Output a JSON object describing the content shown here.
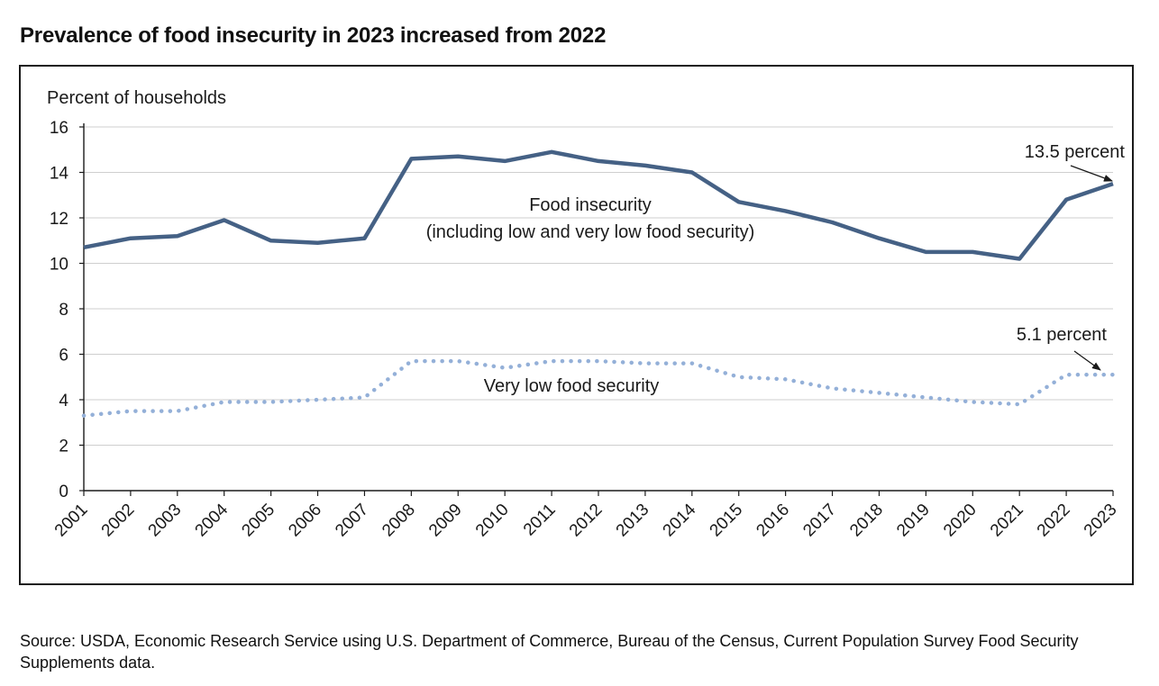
{
  "title": "Prevalence of food insecurity in 2023 increased from 2022",
  "source": "Source: USDA, Economic Research Service using U.S. Department of Commerce, Bureau of the Census, Current Population Survey Food Security Supplements data.",
  "annotations": {
    "food_insecurity_line1": "Food insecurity",
    "food_insecurity_line2": "(including low and very low food security)",
    "very_low": "Very low food security",
    "fi_end": "13.5 percent",
    "vl_end": "5.1 percent"
  },
  "chart_data": {
    "type": "line",
    "ylabel": "Percent of households",
    "xlabel": "",
    "ylim": [
      0,
      16
    ],
    "yticks": [
      0,
      2,
      4,
      6,
      8,
      10,
      12,
      14,
      16
    ],
    "grid": true,
    "categories": [
      "2001",
      "2002",
      "2003",
      "2004",
      "2005",
      "2006",
      "2007",
      "2008",
      "2009",
      "2010",
      "2011",
      "2012",
      "2013",
      "2014",
      "2015",
      "2016",
      "2017",
      "2018",
      "2019",
      "2020",
      "2021",
      "2022",
      "2023"
    ],
    "series": [
      {
        "style": "solid",
        "color": "#456185",
        "values": [
          10.7,
          11.1,
          11.2,
          11.9,
          11.0,
          10.9,
          11.1,
          14.6,
          14.7,
          14.5,
          14.9,
          14.5,
          14.3,
          14.0,
          12.7,
          12.3,
          11.8,
          11.1,
          10.5,
          10.5,
          10.2,
          12.8,
          13.5
        ]
      },
      {
        "style": "dotted",
        "color": "#94b0d8",
        "values": [
          3.3,
          3.5,
          3.5,
          3.9,
          3.9,
          4.0,
          4.1,
          5.7,
          5.7,
          5.4,
          5.7,
          5.7,
          5.6,
          5.6,
          5.0,
          4.9,
          4.5,
          4.3,
          4.1,
          3.9,
          3.8,
          5.1,
          5.1
        ]
      }
    ]
  }
}
